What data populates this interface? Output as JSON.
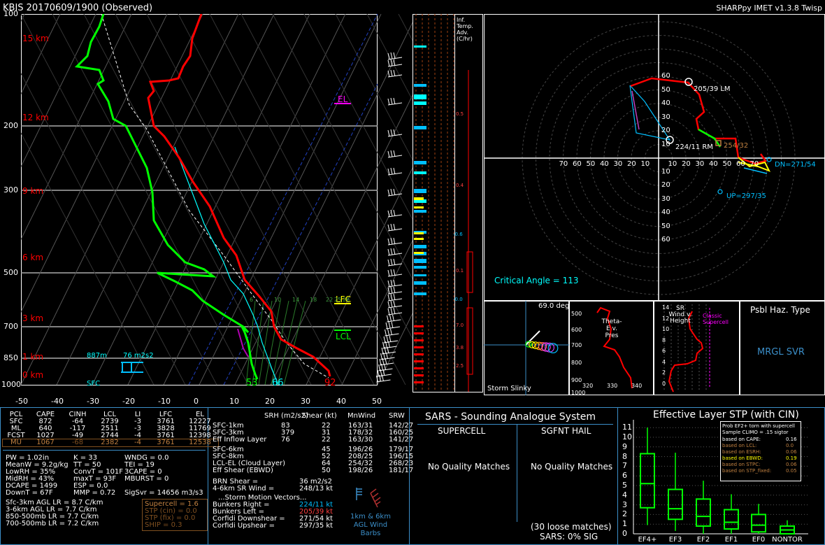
{
  "header": {
    "station_title": "KBIS   20170609/1900  (Observed)",
    "version": "SHARPpy IMET v1.3.8 Twisp"
  },
  "skewt": {
    "pressure_ticks": [
      "100",
      "200",
      "300",
      "500",
      "700",
      "850",
      "1000"
    ],
    "temp_ticks": [
      "-50",
      "-40",
      "-30",
      "-20",
      "-10",
      "0",
      "10",
      "20",
      "30",
      "40",
      "50"
    ],
    "height_labels": [
      "15 km",
      "12 km",
      "9 km",
      "6 km",
      "3 km",
      "1 km",
      "0 km"
    ],
    "el_label": "EL",
    "lfc_label": "LFC",
    "lcl_label": "LCL",
    "sfc_label": "SFC",
    "eff_inflow_base": "887m",
    "eff_inflow_srh": "76 m2s2",
    "sfc_dewpoint": "53",
    "sfc_wetbulb": "66",
    "sfc_temp": "92",
    "mixing_ratios": [
      "6",
      "10",
      "14",
      "18",
      "22",
      "25",
      "26"
    ]
  },
  "colors": {
    "temperature": "#ff0000",
    "dewpoint": "#00ff00",
    "wetbulb": "#00ffff",
    "parcel": "#ffffff",
    "panel_border": "#3b8ec8",
    "el": "#ff00ff",
    "lfc": "#ffff00",
    "lcl": "#00ff00"
  },
  "inferred_temp_adv": {
    "title": "Inf. Temp. Adv. (C/hr)",
    "labels": [
      "0.5",
      "0.4",
      "-0.6",
      "0.1",
      "-0.0",
      "7.0",
      "3.8",
      "2.5"
    ]
  },
  "hodograph": {
    "rings": [
      "10",
      "20",
      "30",
      "40",
      "50",
      "60"
    ],
    "x_labels": [
      "70",
      "60",
      "50",
      "40",
      "30",
      "20",
      "10",
      "10",
      "20",
      "30",
      "40",
      "50",
      "60",
      "70"
    ],
    "lm_label": "205/39 LM",
    "rm_label": "224/11 RM",
    "mean_wind_label": "254/32",
    "down_label": "DN=271/54",
    "up_label": "UP=297/35",
    "critical_angle": "Critical Angle = 113"
  },
  "storm_slinky": {
    "angle": "69.0 deg",
    "title": "Storm Slinky"
  },
  "theta_e": {
    "title": "Theta-E v. Pres",
    "y_ticks": [
      "500",
      "600",
      "700",
      "800",
      "900",
      "1000"
    ],
    "x_ticks": [
      "320",
      "330",
      "340"
    ]
  },
  "sr_wind": {
    "title": "SR Wind v. Height",
    "y_ticks": [
      "14",
      "12",
      "10",
      "8",
      "6",
      "4",
      "2",
      "0"
    ],
    "classic_label": "Classic Supercell"
  },
  "hazard": {
    "title": "Psbl Haz. Type",
    "value": "MRGL SVR"
  },
  "parcels": {
    "headers": [
      "PCL",
      "CAPE",
      "CINH",
      "LCL",
      "LI",
      "LFC",
      "EL"
    ],
    "rows": [
      [
        "SFC",
        "872",
        "-64",
        "2739",
        "-3",
        "3761",
        "12227"
      ],
      [
        "ML",
        "640",
        "-117",
        "2511",
        "-3",
        "3828",
        "11769"
      ],
      [
        "FCST",
        "1027",
        "-49",
        "2744",
        "-4",
        "3761",
        "12398"
      ],
      [
        "MU",
        "1067",
        "-68",
        "2382",
        "-4",
        "3761",
        "12538"
      ]
    ]
  },
  "indices": {
    "col1": [
      "PW = 1.02in",
      "MeanW = 9.2g/kg",
      "LowRH = 35%",
      "MidRH = 43%",
      "DCAPE = 1499",
      "DownT = 67F"
    ],
    "col2": [
      "K = 33",
      "TT = 50",
      "ConvT = 101F",
      "maxT = 93F",
      "ESP = 0.0",
      "MMP = 0.72"
    ],
    "col3": [
      "WNDG = 0.0",
      "TEI = 19",
      "3CAPE = 0",
      "MBURST = 0",
      "",
      "SigSvr = 14656 m3/s3"
    ],
    "lapse_rates": [
      "Sfc-3km AGL LR = 8.7 C/km",
      "3-6km AGL LR = 7.7 C/km",
      "850-500mb LR = 7.7 C/km",
      "700-500mb LR = 7.2 C/km"
    ],
    "composite": [
      "Supercell = 1.6",
      "STP (cin) = 0.0",
      "STP (fix) = 0.0",
      "SHIP = 0.3"
    ]
  },
  "kinematics": {
    "headers": [
      "SRH (m2/s2)",
      "Shear (kt)",
      "MnWind",
      "SRW"
    ],
    "rows": [
      [
        "SFC-1km",
        "83",
        "22",
        "163/31",
        "142/27"
      ],
      [
        "SFC-3km",
        "379",
        "31",
        "178/32",
        "160/25"
      ],
      [
        "Eff Inflow Layer",
        "76",
        "22",
        "163/30",
        "141/27"
      ],
      [
        "SFC-6km",
        "",
        "45",
        "196/26",
        "179/17"
      ],
      [
        "SFC-8km",
        "",
        "52",
        "208/25",
        "196/15"
      ],
      [
        "LCL-EL (Cloud Layer)",
        "",
        "64",
        "254/32",
        "268/23"
      ],
      [
        "Eff Shear (EBWD)",
        "",
        "50",
        "198/26",
        "181/17"
      ]
    ],
    "brn_shear_label": "BRN Shear =",
    "brn_shear": "36 m2/s2",
    "sr_wind_label": "4-6km SR Wind =",
    "sr_wind": "248/13 kt",
    "storm_motion_title": "...Storm Motion Vectors...",
    "motions": [
      [
        "Bunkers Right =",
        "224/11 kt"
      ],
      [
        "Bunkers Left =",
        "205/39 kt"
      ],
      [
        "Corfidi Downshear =",
        "271/54 kt"
      ],
      [
        "Corfidi Upshear =",
        "297/35 kt"
      ]
    ],
    "wind_barbs_label": "1km & 6km AGL Wind Barbs"
  },
  "sars": {
    "title": "SARS - Sounding Analogue System",
    "supercell_title": "SUPERCELL",
    "hail_title": "SGFNT HAIL",
    "supercell_result": "No Quality Matches",
    "hail_result": "No Quality Matches",
    "loose_matches": "(30 loose matches)",
    "sig": "SARS: 0% SIG"
  },
  "stp_box": {
    "title": "Effective Layer STP (with CIN)",
    "legend_title": "Prob EF2+ torn with supercell",
    "legend_subtitle": "Sample CLIMO = .15 sigtor",
    "legend_rows": [
      [
        "based on CAPE:",
        "0.16"
      ],
      [
        "based on LCL:",
        "0.0"
      ],
      [
        "based on ESRH:",
        "0.06"
      ],
      [
        "based on EBWD:",
        "0.19"
      ],
      [
        "based on STPC:",
        "0.06"
      ],
      [
        "based on STP_fixed:",
        "0.05"
      ]
    ],
    "y_ticks": [
      "0",
      "1",
      "2",
      "3",
      "4",
      "5",
      "6",
      "7",
      "8",
      "9",
      "10",
      "11"
    ]
  },
  "chart_data": {
    "type": "box",
    "title": "Effective Layer STP (with CIN)",
    "categories": [
      "EF4+",
      "EF3",
      "EF2",
      "EF1",
      "EF0",
      "NONTOR"
    ],
    "ylim": [
      0,
      11
    ],
    "boxes": [
      {
        "whisker_low": 0.9,
        "q1": 2.7,
        "median": 5.2,
        "q3": 8.3,
        "whisker_high": 11.0
      },
      {
        "whisker_low": 0.3,
        "q1": 1.5,
        "median": 2.6,
        "q3": 4.6,
        "whisker_high": 8.4
      },
      {
        "whisker_low": 0.0,
        "q1": 0.8,
        "median": 1.8,
        "q3": 3.6,
        "whisker_high": 5.5
      },
      {
        "whisker_low": 0.0,
        "q1": 0.5,
        "median": 1.2,
        "q3": 2.5,
        "whisker_high": 4.1
      },
      {
        "whisker_low": 0.0,
        "q1": 0.2,
        "median": 0.9,
        "q3": 2.0,
        "whisker_high": 3.1
      },
      {
        "whisker_low": 0.0,
        "q1": 0.0,
        "median": 0.4,
        "q3": 0.8,
        "whisker_high": 1.4
      }
    ]
  }
}
